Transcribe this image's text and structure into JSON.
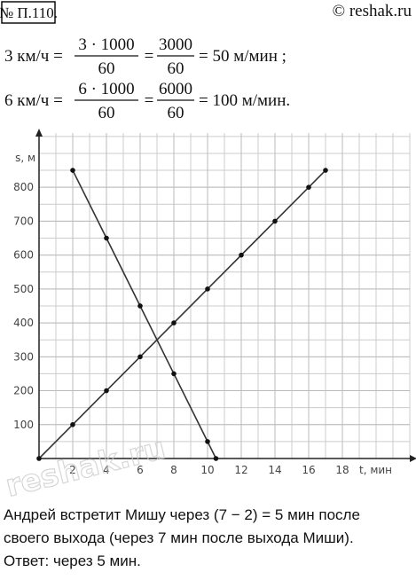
{
  "header": {
    "number": "№ П.110.",
    "source": "© reshak.ru"
  },
  "formulas": [
    {
      "left": "3  км/ч =",
      "frac1": {
        "num": "3 · 1000",
        "den": "60"
      },
      "eq": "=",
      "frac2": {
        "num": "3000",
        "den": "60"
      },
      "right": "= 50  м/мин ;"
    },
    {
      "left": "6  км/ч =",
      "frac1": {
        "num": "6 · 1000",
        "den": "60"
      },
      "eq": "=",
      "frac2": {
        "num": "6000",
        "den": "60"
      },
      "right": "= 100  м/мин."
    }
  ],
  "chart_data": {
    "type": "line",
    "x_label": "t, мин",
    "y_label": "s, м",
    "xlim": [
      0,
      22
    ],
    "ylim": [
      0,
      960
    ],
    "xticks": [
      2,
      4,
      6,
      8,
      10,
      12,
      14,
      16,
      18
    ],
    "yticks": [
      100,
      200,
      300,
      400,
      500,
      600,
      700,
      800
    ],
    "grid": true,
    "series": [
      {
        "color": "#333333",
        "x": [
          0,
          2,
          4,
          6,
          8,
          10,
          12,
          14,
          16,
          17
        ],
        "values": [
          0,
          100,
          200,
          300,
          400,
          500,
          600,
          700,
          800,
          850
        ]
      },
      {
        "color": "#333333",
        "x": [
          2,
          4,
          6,
          8,
          10,
          10.5
        ],
        "values": [
          850,
          650,
          450,
          250,
          50,
          0
        ]
      }
    ]
  },
  "watermark": "reshak.ru",
  "answer": [
    "Андрей встретит Мишу через (7 − 2) = 5 мин после",
    "своего выхода (через 7 мин после выхода Миши).",
    "Ответ: через 5 мин."
  ]
}
